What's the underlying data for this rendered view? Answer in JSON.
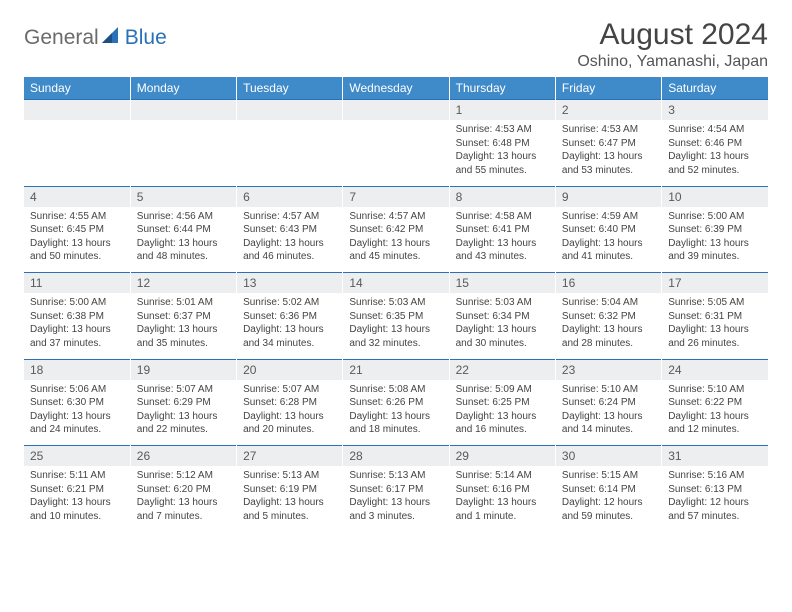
{
  "brand": {
    "text1": "General",
    "text2": "Blue"
  },
  "title": "August 2024",
  "location": "Oshino, Yamanashi, Japan",
  "colors": {
    "header_bg": "#3f8ac9",
    "header_text": "#ffffff",
    "daynum_bg": "#eceeef",
    "rule": "#2a71b8",
    "brand_gray": "#6b6b6b",
    "brand_blue": "#2a71b8",
    "body_text": "#444444",
    "page_bg": "#ffffff"
  },
  "typography": {
    "title_fontsize": 30,
    "location_fontsize": 16,
    "weekday_fontsize": 12,
    "daynum_fontsize": 12,
    "cell_fontsize": 10
  },
  "weekdays": [
    "Sunday",
    "Monday",
    "Tuesday",
    "Wednesday",
    "Thursday",
    "Friday",
    "Saturday"
  ],
  "weeks": [
    [
      null,
      null,
      null,
      null,
      {
        "n": "1",
        "sr": "4:53 AM",
        "ss": "6:48 PM",
        "dl": "13 hours and 55 minutes."
      },
      {
        "n": "2",
        "sr": "4:53 AM",
        "ss": "6:47 PM",
        "dl": "13 hours and 53 minutes."
      },
      {
        "n": "3",
        "sr": "4:54 AM",
        "ss": "6:46 PM",
        "dl": "13 hours and 52 minutes."
      }
    ],
    [
      {
        "n": "4",
        "sr": "4:55 AM",
        "ss": "6:45 PM",
        "dl": "13 hours and 50 minutes."
      },
      {
        "n": "5",
        "sr": "4:56 AM",
        "ss": "6:44 PM",
        "dl": "13 hours and 48 minutes."
      },
      {
        "n": "6",
        "sr": "4:57 AM",
        "ss": "6:43 PM",
        "dl": "13 hours and 46 minutes."
      },
      {
        "n": "7",
        "sr": "4:57 AM",
        "ss": "6:42 PM",
        "dl": "13 hours and 45 minutes."
      },
      {
        "n": "8",
        "sr": "4:58 AM",
        "ss": "6:41 PM",
        "dl": "13 hours and 43 minutes."
      },
      {
        "n": "9",
        "sr": "4:59 AM",
        "ss": "6:40 PM",
        "dl": "13 hours and 41 minutes."
      },
      {
        "n": "10",
        "sr": "5:00 AM",
        "ss": "6:39 PM",
        "dl": "13 hours and 39 minutes."
      }
    ],
    [
      {
        "n": "11",
        "sr": "5:00 AM",
        "ss": "6:38 PM",
        "dl": "13 hours and 37 minutes."
      },
      {
        "n": "12",
        "sr": "5:01 AM",
        "ss": "6:37 PM",
        "dl": "13 hours and 35 minutes."
      },
      {
        "n": "13",
        "sr": "5:02 AM",
        "ss": "6:36 PM",
        "dl": "13 hours and 34 minutes."
      },
      {
        "n": "14",
        "sr": "5:03 AM",
        "ss": "6:35 PM",
        "dl": "13 hours and 32 minutes."
      },
      {
        "n": "15",
        "sr": "5:03 AM",
        "ss": "6:34 PM",
        "dl": "13 hours and 30 minutes."
      },
      {
        "n": "16",
        "sr": "5:04 AM",
        "ss": "6:32 PM",
        "dl": "13 hours and 28 minutes."
      },
      {
        "n": "17",
        "sr": "5:05 AM",
        "ss": "6:31 PM",
        "dl": "13 hours and 26 minutes."
      }
    ],
    [
      {
        "n": "18",
        "sr": "5:06 AM",
        "ss": "6:30 PM",
        "dl": "13 hours and 24 minutes."
      },
      {
        "n": "19",
        "sr": "5:07 AM",
        "ss": "6:29 PM",
        "dl": "13 hours and 22 minutes."
      },
      {
        "n": "20",
        "sr": "5:07 AM",
        "ss": "6:28 PM",
        "dl": "13 hours and 20 minutes."
      },
      {
        "n": "21",
        "sr": "5:08 AM",
        "ss": "6:26 PM",
        "dl": "13 hours and 18 minutes."
      },
      {
        "n": "22",
        "sr": "5:09 AM",
        "ss": "6:25 PM",
        "dl": "13 hours and 16 minutes."
      },
      {
        "n": "23",
        "sr": "5:10 AM",
        "ss": "6:24 PM",
        "dl": "13 hours and 14 minutes."
      },
      {
        "n": "24",
        "sr": "5:10 AM",
        "ss": "6:22 PM",
        "dl": "13 hours and 12 minutes."
      }
    ],
    [
      {
        "n": "25",
        "sr": "5:11 AM",
        "ss": "6:21 PM",
        "dl": "13 hours and 10 minutes."
      },
      {
        "n": "26",
        "sr": "5:12 AM",
        "ss": "6:20 PM",
        "dl": "13 hours and 7 minutes."
      },
      {
        "n": "27",
        "sr": "5:13 AM",
        "ss": "6:19 PM",
        "dl": "13 hours and 5 minutes."
      },
      {
        "n": "28",
        "sr": "5:13 AM",
        "ss": "6:17 PM",
        "dl": "13 hours and 3 minutes."
      },
      {
        "n": "29",
        "sr": "5:14 AM",
        "ss": "6:16 PM",
        "dl": "13 hours and 1 minute."
      },
      {
        "n": "30",
        "sr": "5:15 AM",
        "ss": "6:14 PM",
        "dl": "12 hours and 59 minutes."
      },
      {
        "n": "31",
        "sr": "5:16 AM",
        "ss": "6:13 PM",
        "dl": "12 hours and 57 minutes."
      }
    ]
  ],
  "labels": {
    "sunrise": "Sunrise:",
    "sunset": "Sunset:",
    "daylight": "Daylight:"
  }
}
